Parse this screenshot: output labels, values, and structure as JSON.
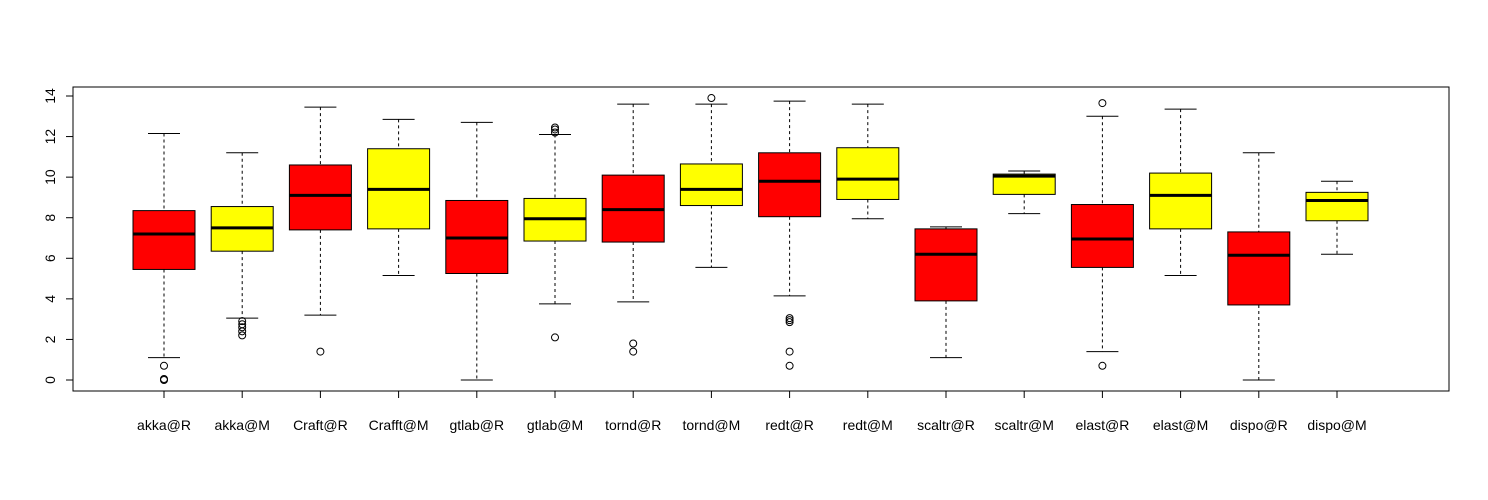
{
  "chart_data": {
    "type": "boxplot",
    "title": "",
    "xlabel": "",
    "ylabel": "",
    "ylim": [
      0,
      14
    ],
    "yticks": [
      0,
      2,
      4,
      6,
      8,
      10,
      12,
      14
    ],
    "colors": {
      "R": "#ff0000",
      "M": "#ffff00"
    },
    "categories": [
      "akka@R",
      "akka@M",
      "Craft@R",
      "Crafft@M",
      "gtlab@R",
      "gtlab@M",
      "tornd@R",
      "tornd@M",
      "redt@R",
      "redt@M",
      "scaltr@R",
      "scaltr@M",
      "elast@R",
      "elast@M",
      "dispo@R",
      "dispo@M"
    ],
    "boxes": [
      {
        "label": "akka@R",
        "color": "#ff0000",
        "min": 1.1,
        "q1": 5.45,
        "median": 7.2,
        "q3": 8.35,
        "max": 12.15,
        "outliers": [
          0.7,
          0.05,
          0.0
        ]
      },
      {
        "label": "akka@M",
        "color": "#ffff00",
        "min": 3.05,
        "q1": 6.35,
        "median": 7.5,
        "q3": 8.55,
        "max": 11.2,
        "outliers": [
          2.9,
          2.75,
          2.6,
          2.4,
          2.2
        ]
      },
      {
        "label": "Craft@R",
        "color": "#ff0000",
        "min": 3.2,
        "q1": 7.4,
        "median": 9.1,
        "q3": 10.6,
        "max": 13.45,
        "outliers": [
          1.4
        ]
      },
      {
        "label": "Crafft@M",
        "color": "#ffff00",
        "min": 5.15,
        "q1": 7.45,
        "median": 9.4,
        "q3": 11.4,
        "max": 12.85,
        "outliers": []
      },
      {
        "label": "gtlab@R",
        "color": "#ff0000",
        "min": 0.0,
        "q1": 5.25,
        "median": 7.0,
        "q3": 8.85,
        "max": 12.7,
        "outliers": []
      },
      {
        "label": "gtlab@M",
        "color": "#ffff00",
        "min": 3.75,
        "q1": 6.85,
        "median": 7.95,
        "q3": 8.95,
        "max": 12.1,
        "outliers": [
          2.1,
          12.2,
          12.35,
          12.45
        ]
      },
      {
        "label": "tornd@R",
        "color": "#ff0000",
        "min": 3.85,
        "q1": 6.8,
        "median": 8.4,
        "q3": 10.1,
        "max": 13.6,
        "outliers": [
          1.8,
          1.4
        ]
      },
      {
        "label": "tornd@M",
        "color": "#ffff00",
        "min": 5.55,
        "q1": 8.6,
        "median": 9.4,
        "q3": 10.65,
        "max": 13.6,
        "outliers": [
          13.9
        ]
      },
      {
        "label": "redt@R",
        "color": "#ff0000",
        "min": 4.15,
        "q1": 8.05,
        "median": 9.8,
        "q3": 11.2,
        "max": 13.75,
        "outliers": [
          3.05,
          2.95,
          2.85,
          1.4,
          0.7
        ]
      },
      {
        "label": "redt@M",
        "color": "#ffff00",
        "min": 7.95,
        "q1": 8.9,
        "median": 9.9,
        "q3": 11.45,
        "max": 13.6,
        "outliers": []
      },
      {
        "label": "scaltr@R",
        "color": "#ff0000",
        "min": 1.1,
        "q1": 3.9,
        "median": 6.2,
        "q3": 7.45,
        "max": 7.55,
        "outliers": []
      },
      {
        "label": "scaltr@M",
        "color": "#ffff00",
        "min": 8.2,
        "q1": 9.15,
        "median": 10.05,
        "q3": 10.15,
        "max": 10.3,
        "outliers": []
      },
      {
        "label": "elast@R",
        "color": "#ff0000",
        "min": 1.4,
        "q1": 5.55,
        "median": 6.95,
        "q3": 8.65,
        "max": 13.0,
        "outliers": [
          0.7,
          13.65
        ]
      },
      {
        "label": "elast@M",
        "color": "#ffff00",
        "min": 5.15,
        "q1": 7.45,
        "median": 9.1,
        "q3": 10.2,
        "max": 13.35,
        "outliers": []
      },
      {
        "label": "dispo@R",
        "color": "#ff0000",
        "min": 0.0,
        "q1": 3.7,
        "median": 6.15,
        "q3": 7.3,
        "max": 11.2,
        "outliers": []
      },
      {
        "label": "dispo@M",
        "color": "#ffff00",
        "min": 6.2,
        "q1": 7.85,
        "median": 8.85,
        "q3": 9.25,
        "max": 9.8,
        "outliers": []
      }
    ]
  }
}
